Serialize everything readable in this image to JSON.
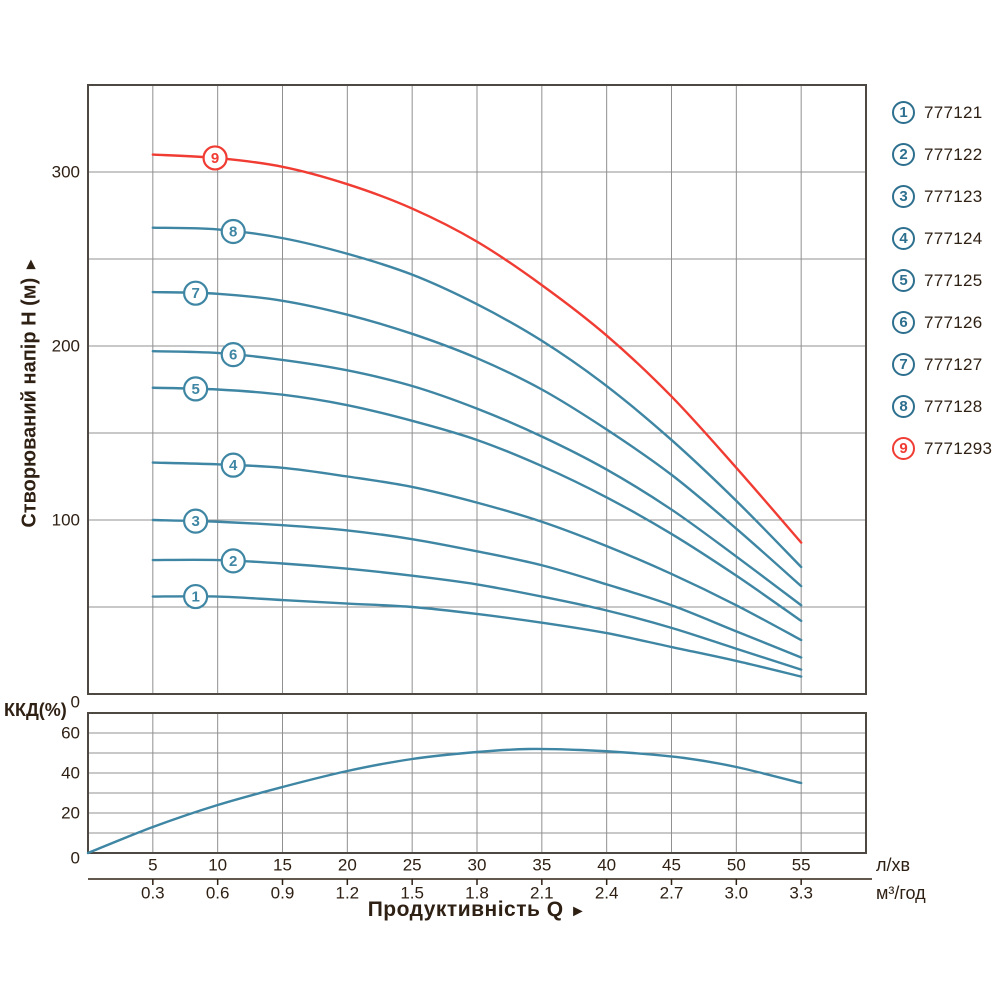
{
  "palette": {
    "curve_blue": "#3e86a3",
    "curve_red": "#f03c33",
    "legend_blue": "#2d6f8e",
    "text_dark": "#2f2014",
    "grid_inner": "#909090",
    "grid_border": "#4e4842",
    "background": "#ffffff"
  },
  "axes": {
    "y_main_title": "Створюваний напір H (м)",
    "y_main_arrow": "►",
    "kkd_label": "ККД(%)",
    "x_title": "Продуктивність  Q",
    "x_arrow": "►",
    "unit_primary": "л/хв",
    "unit_secondary": "м³/год"
  },
  "legend": {
    "items": [
      {
        "num": "1",
        "model": "777121",
        "color": "#2d6f8e"
      },
      {
        "num": "2",
        "model": "777122",
        "color": "#2d6f8e"
      },
      {
        "num": "3",
        "model": "777123",
        "color": "#2d6f8e"
      },
      {
        "num": "4",
        "model": "777124",
        "color": "#2d6f8e"
      },
      {
        "num": "5",
        "model": "777125",
        "color": "#2d6f8e"
      },
      {
        "num": "6",
        "model": "777126",
        "color": "#2d6f8e"
      },
      {
        "num": "7",
        "model": "777127",
        "color": "#2d6f8e"
      },
      {
        "num": "8",
        "model": "777128",
        "color": "#2d6f8e"
      },
      {
        "num": "9",
        "model": "7771293",
        "color": "#f03c33"
      }
    ]
  },
  "chart_data": [
    {
      "id": "head-curves",
      "type": "line",
      "title": "",
      "ylabel": "Створюваний напір H (м)",
      "xlabel": "Продуктивність Q",
      "xlim": [
        0,
        60
      ],
      "ylim": [
        0,
        350
      ],
      "grid": {
        "x_step": 5,
        "y_step": 50,
        "on": true
      },
      "y_ticks": [
        300,
        200,
        100,
        0
      ],
      "x_ticks_primary": [
        "5",
        "10",
        "15",
        "20",
        "25",
        "30",
        "35",
        "40",
        "45",
        "50",
        "55"
      ],
      "x_ticks_secondary": [
        "0.3",
        "0.6",
        "0.9",
        "1.2",
        "1.5",
        "1.8",
        "2.1",
        "2.4",
        "2.7",
        "3.0",
        "3.3"
      ],
      "x_units_primary": "л/хв",
      "x_units_secondary": "м³/год",
      "x": [
        5,
        10,
        15,
        20,
        25,
        30,
        35,
        40,
        45,
        50,
        55
      ],
      "series": [
        {
          "label": "1",
          "model": "777121",
          "color": "#3e86a3",
          "label_q": 8.3,
          "values": [
            56,
            56,
            54,
            52,
            50,
            46,
            41,
            35,
            27,
            19,
            10
          ]
        },
        {
          "label": "2",
          "model": "777122",
          "color": "#3e86a3",
          "label_q": 11.2,
          "values": [
            77,
            77,
            75,
            72,
            68,
            63,
            56,
            48,
            38,
            26,
            14
          ]
        },
        {
          "label": "3",
          "model": "777123",
          "color": "#3e86a3",
          "label_q": 8.3,
          "values": [
            100,
            99,
            97,
            94,
            89,
            82,
            74,
            63,
            51,
            36,
            21
          ]
        },
        {
          "label": "4",
          "model": "777124",
          "color": "#3e86a3",
          "label_q": 11.2,
          "values": [
            133,
            132,
            130,
            125,
            119,
            110,
            99,
            85,
            69,
            51,
            31
          ]
        },
        {
          "label": "5",
          "model": "777125",
          "color": "#3e86a3",
          "label_q": 8.3,
          "values": [
            176,
            175,
            172,
            166,
            157,
            146,
            131,
            113,
            92,
            68,
            42
          ]
        },
        {
          "label": "6",
          "model": "777126",
          "color": "#3e86a3",
          "label_q": 11.2,
          "values": [
            197,
            196,
            192,
            186,
            177,
            164,
            148,
            129,
            106,
            79,
            51
          ]
        },
        {
          "label": "7",
          "model": "777127",
          "color": "#3e86a3",
          "label_q": 8.3,
          "values": [
            231,
            230,
            226,
            218,
            207,
            193,
            175,
            152,
            126,
            95,
            62
          ]
        },
        {
          "label": "8",
          "model": "777128",
          "color": "#3e86a3",
          "label_q": 11.2,
          "values": [
            268,
            267,
            262,
            253,
            241,
            224,
            203,
            177,
            146,
            111,
            73
          ]
        },
        {
          "label": "9",
          "model": "7771293",
          "color": "#f03c33",
          "label_q": 9.8,
          "values": [
            310,
            308,
            303,
            293,
            279,
            260,
            235,
            206,
            171,
            130,
            87
          ]
        }
      ]
    },
    {
      "id": "efficiency",
      "type": "line",
      "title": "",
      "ylabel": "ККД(%)",
      "xlim": [
        0,
        60
      ],
      "ylim": [
        0,
        70
      ],
      "grid": {
        "x_step": 5,
        "y_step": 10,
        "on": true
      },
      "y_ticks": [
        60,
        40,
        20,
        0
      ],
      "series": [
        {
          "label": "efficiency",
          "color": "#3e86a3",
          "points": [
            [
              0,
              0
            ],
            [
              5,
              13
            ],
            [
              10,
              24
            ],
            [
              15,
              33
            ],
            [
              20,
              41
            ],
            [
              25,
              47
            ],
            [
              30,
              50.5
            ],
            [
              34,
              52
            ],
            [
              38,
              51.5
            ],
            [
              42,
              50
            ],
            [
              46,
              47.5
            ],
            [
              50,
              43
            ],
            [
              55,
              35
            ]
          ]
        }
      ]
    }
  ]
}
